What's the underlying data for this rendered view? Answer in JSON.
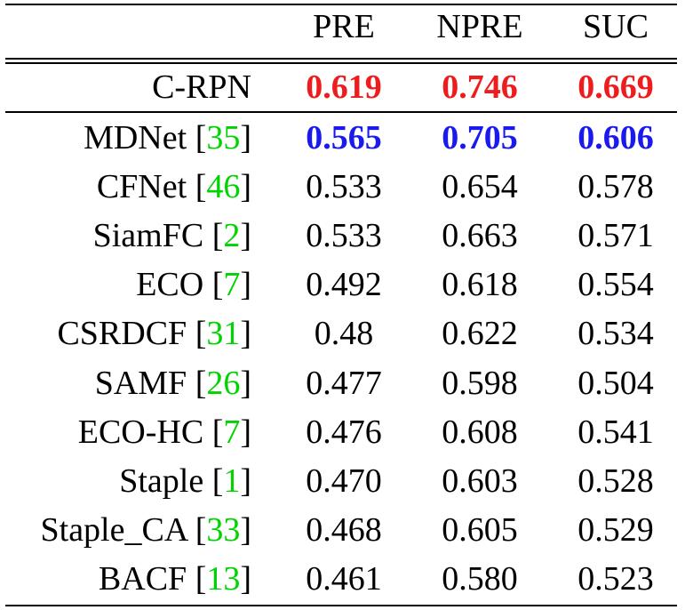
{
  "table": {
    "headers": [
      "PRE",
      "NPRE",
      "SUC"
    ],
    "colors": {
      "best": "#ee1c1c",
      "second": "#1a1aee",
      "citation": "#00d400"
    },
    "best_row": {
      "method": "C-RPN",
      "values": [
        "0.619",
        "0.746",
        "0.669"
      ]
    },
    "rows": [
      {
        "method": "MDNet",
        "ref": "35",
        "values": [
          "0.565",
          "0.705",
          "0.606"
        ]
      },
      {
        "method": "CFNet",
        "ref": "46",
        "values": [
          "0.533",
          "0.654",
          "0.578"
        ]
      },
      {
        "method": "SiamFC",
        "ref": "2",
        "values": [
          "0.533",
          "0.663",
          "0.571"
        ]
      },
      {
        "method": "ECO",
        "ref": "7",
        "values": [
          "0.492",
          "0.618",
          "0.554"
        ]
      },
      {
        "method": "CSRDCF",
        "ref": "31",
        "values": [
          "0.48",
          "0.622",
          "0.534"
        ]
      },
      {
        "method": "SAMF",
        "ref": "26",
        "values": [
          "0.477",
          "0.598",
          "0.504"
        ]
      },
      {
        "method": "ECO-HC",
        "ref": "7",
        "values": [
          "0.476",
          "0.608",
          "0.541"
        ]
      },
      {
        "method": "Staple",
        "ref": "1",
        "values": [
          "0.470",
          "0.603",
          "0.528"
        ]
      },
      {
        "method": "Staple_CA",
        "ref": "33",
        "values": [
          "0.468",
          "0.605",
          "0.529"
        ]
      },
      {
        "method": "BACF",
        "ref": "13",
        "values": [
          "0.461",
          "0.580",
          "0.523"
        ]
      }
    ]
  }
}
